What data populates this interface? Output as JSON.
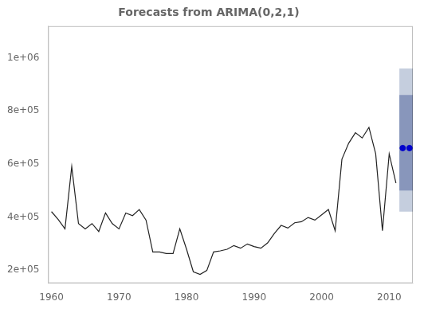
{
  "chart_data": {
    "type": "line",
    "title": "Forecasts from ARIMA(0,2,1)",
    "x": [
      1960,
      1961,
      1962,
      1963,
      1964,
      1965,
      1966,
      1967,
      1968,
      1969,
      1970,
      1971,
      1972,
      1973,
      1974,
      1975,
      1976,
      1977,
      1978,
      1979,
      1980,
      1981,
      1982,
      1983,
      1984,
      1985,
      1986,
      1987,
      1988,
      1989,
      1990,
      1991,
      1992,
      1993,
      1994,
      1995,
      1996,
      1997,
      1998,
      1999,
      2000,
      2001,
      2002,
      2003,
      2004,
      2005,
      2006,
      2007,
      2008,
      2009,
      2010,
      2011
    ],
    "values": [
      420000,
      390000,
      355000,
      590000,
      375000,
      355000,
      375000,
      345000,
      415000,
      375000,
      355000,
      415000,
      405000,
      428000,
      388000,
      268000,
      268000,
      262000,
      262000,
      355000,
      278000,
      193000,
      183000,
      198000,
      268000,
      272000,
      278000,
      292000,
      282000,
      298000,
      288000,
      282000,
      302000,
      338000,
      368000,
      358000,
      378000,
      382000,
      398000,
      388000,
      408000,
      428000,
      348000,
      618000,
      678000,
      718000,
      698000,
      738000,
      638000,
      348000,
      638000,
      528000
    ],
    "color": "#222222",
    "forecast": {
      "x": [
        2012,
        2013
      ],
      "values": [
        660000,
        660000
      ],
      "color": "#0000cc",
      "marker": "circle"
    },
    "bands": [
      {
        "x": [
          2011.5,
          2013.5
        ],
        "low": 420000,
        "high": 960000,
        "color": "#c5cede"
      },
      {
        "x": [
          2011.5,
          2013.5
        ],
        "low": 500000,
        "high": 860000,
        "color": "#8896bb"
      }
    ],
    "xlim": [
      1959.5,
      2013.5
    ],
    "xticks": [
      1960,
      1970,
      1980,
      1990,
      2000,
      2010
    ],
    "ylim": [
      150000,
      1120000
    ],
    "yticks": [
      {
        "value": 200000,
        "label": "2e+05"
      },
      {
        "value": 400000,
        "label": "4e+05"
      },
      {
        "value": 600000,
        "label": "6e+05"
      },
      {
        "value": 800000,
        "label": "8e+05"
      },
      {
        "value": 1000000,
        "label": "1e+06"
      }
    ],
    "grid": false
  }
}
